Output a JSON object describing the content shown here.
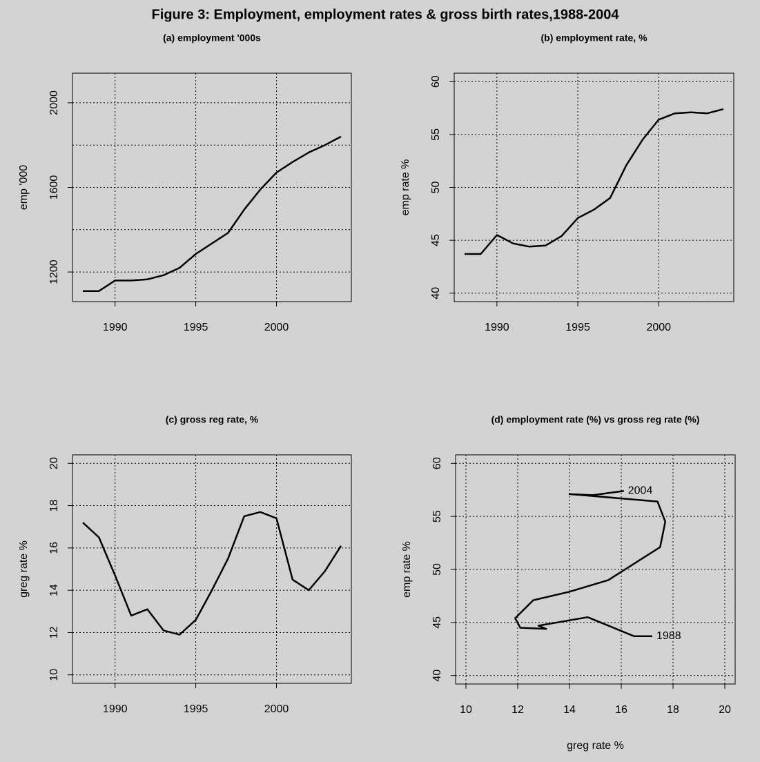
{
  "title": "Figure 3: Employment, employment rates & gross birth rates,1988-2004",
  "chart_data": [
    {
      "type": "line",
      "title": "(a) employment '000s",
      "ylabel": "emp '000",
      "color": "#000000",
      "grid": true,
      "x": [
        1988,
        1989,
        1990,
        1991,
        1992,
        1993,
        1994,
        1995,
        1996,
        1997,
        1998,
        1999,
        2000,
        2001,
        2002,
        2003,
        2004
      ],
      "values": [
        1110,
        1110,
        1160,
        1160,
        1165,
        1185,
        1220,
        1285,
        1335,
        1385,
        1495,
        1590,
        1670,
        1720,
        1765,
        1800,
        1840
      ],
      "xlim": [
        1987.36,
        2004.64
      ],
      "xticks": [
        1990,
        1995,
        2000
      ],
      "ylim": [
        1060,
        2140
      ],
      "yticks": [
        1200,
        1600,
        2000
      ],
      "ygrid": [
        1200,
        1400,
        1600,
        1800,
        2000
      ]
    },
    {
      "type": "line",
      "title": "(b) employment rate, %",
      "ylabel": "emp rate %",
      "color": "#000000",
      "grid": true,
      "x": [
        1988,
        1989,
        1990,
        1991,
        1992,
        1993,
        1994,
        1995,
        1996,
        1997,
        1998,
        1999,
        2000,
        2001,
        2002,
        2003,
        2004
      ],
      "values": [
        43.7,
        43.7,
        45.5,
        44.7,
        44.4,
        44.5,
        45.4,
        47.1,
        47.9,
        49.0,
        52.1,
        54.5,
        56.4,
        57.0,
        57.1,
        57.0,
        57.4
      ],
      "xlim": [
        1987.36,
        2004.64
      ],
      "xticks": [
        1990,
        1995,
        2000
      ],
      "ylim": [
        39.2,
        60.8
      ],
      "yticks": [
        40,
        45,
        50,
        55,
        60
      ]
    },
    {
      "type": "line",
      "title": "(c) gross reg rate, %",
      "ylabel": "greg rate %",
      "color": "#000000",
      "grid": true,
      "x": [
        1988,
        1989,
        1990,
        1991,
        1992,
        1993,
        1994,
        1995,
        1996,
        1997,
        1998,
        1999,
        2000,
        2001,
        2002,
        2003,
        2004
      ],
      "values": [
        17.2,
        16.5,
        14.7,
        12.8,
        13.1,
        12.1,
        11.9,
        12.6,
        14.0,
        15.5,
        17.5,
        17.7,
        17.4,
        14.5,
        14.0,
        14.9,
        16.1
      ],
      "xlim": [
        1987.36,
        2004.64
      ],
      "xticks": [
        1990,
        1995,
        2000
      ],
      "ylim": [
        9.6,
        20.4
      ],
      "yticks": [
        10,
        12,
        14,
        16,
        18,
        20
      ]
    },
    {
      "type": "line",
      "title": "(d) employment rate (%) vs gross reg rate (%)",
      "xlabel": "greg rate %",
      "ylabel": "emp rate %",
      "color": "#000000",
      "grid": true,
      "x": [
        17.2,
        16.5,
        14.7,
        12.8,
        13.1,
        12.1,
        11.9,
        12.6,
        14.0,
        15.5,
        17.5,
        17.7,
        17.4,
        14.5,
        14.0,
        14.9,
        16.1
      ],
      "values": [
        43.7,
        43.7,
        45.5,
        44.7,
        44.4,
        44.5,
        45.4,
        47.1,
        47.9,
        49.0,
        52.1,
        54.5,
        56.4,
        57.0,
        57.1,
        57.0,
        57.4
      ],
      "annotations": [
        "1988",
        "2004"
      ],
      "xlim": [
        9.6,
        20.4
      ],
      "xticks": [
        10,
        12,
        14,
        16,
        18,
        20
      ],
      "ylim": [
        39.2,
        60.8
      ],
      "yticks": [
        40,
        45,
        50,
        55,
        60
      ]
    }
  ]
}
